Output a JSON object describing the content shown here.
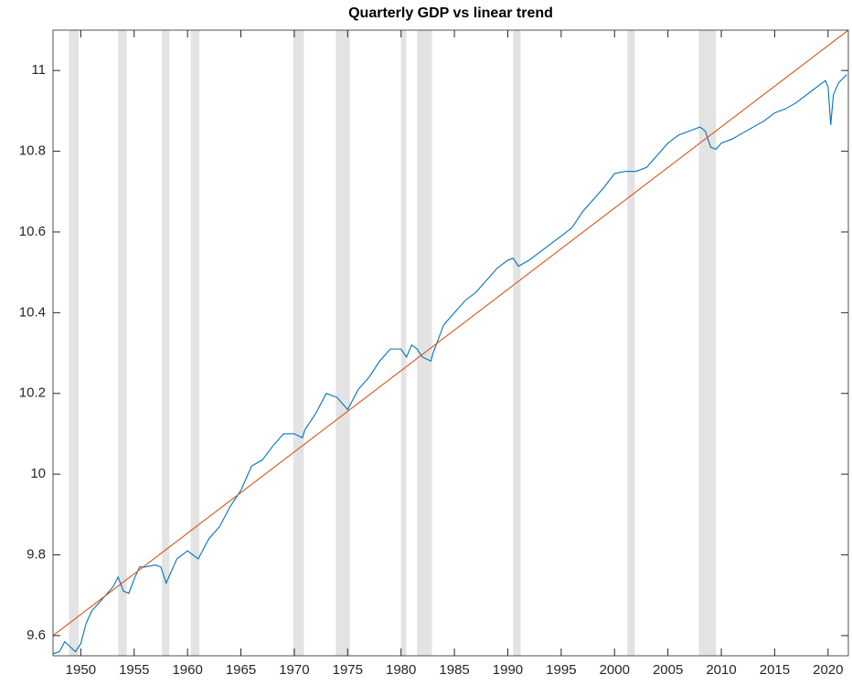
{
  "chart_data": {
    "type": "line",
    "title": "Quarterly GDP vs linear trend",
    "xlim": [
      1947.4,
      2021.9
    ],
    "xticks": [
      1950,
      1955,
      1960,
      1965,
      1970,
      1975,
      1980,
      1985,
      1990,
      1995,
      2000,
      2005,
      2010,
      2015,
      2020
    ],
    "ylim": [
      9.55,
      11.1
    ],
    "yticks": [
      9.6,
      9.8,
      10,
      10.2,
      10.4,
      10.6,
      10.8,
      11
    ],
    "recession_color": "#e3e3e3",
    "recessions": [
      [
        1948.9,
        1949.8
      ],
      [
        1953.5,
        1954.3
      ],
      [
        1957.6,
        1958.3
      ],
      [
        1960.3,
        1961.1
      ],
      [
        1969.9,
        1970.9
      ],
      [
        1973.9,
        1975.2
      ],
      [
        1980.0,
        1980.5
      ],
      [
        1981.5,
        1982.9
      ],
      [
        1990.5,
        1991.2
      ],
      [
        2001.2,
        2001.9
      ],
      [
        2007.9,
        2009.5
      ]
    ],
    "series": [
      {
        "color": "#0072bd",
        "x": [
          1947.4,
          1948,
          1948.5,
          1949.5,
          1950,
          1950.5,
          1951,
          1952,
          1953,
          1953.5,
          1954,
          1954.5,
          1955,
          1955.5,
          1956,
          1957,
          1957.5,
          1958,
          1959,
          1959.5,
          1960,
          1960.5,
          1961,
          1962,
          1963,
          1964,
          1965,
          1966,
          1967,
          1968,
          1969,
          1970,
          1970.75,
          1971,
          1972,
          1973,
          1974,
          1975,
          1976,
          1977,
          1978,
          1979,
          1980,
          1980.5,
          1981,
          1981.5,
          1982,
          1982.8,
          1983,
          1984,
          1985,
          1986,
          1987,
          1988,
          1989,
          1990,
          1990.5,
          1991,
          1992,
          1993,
          1994,
          1995,
          1996,
          1997,
          1998,
          1999,
          2000,
          2001,
          2002,
          2003,
          2004,
          2005,
          2006,
          2007,
          2008,
          2008.5,
          2009,
          2009.5,
          2010,
          2011,
          2012,
          2013,
          2014,
          2015,
          2016,
          2017,
          2018,
          2019,
          2019.75,
          2020,
          2020.25,
          2020.5,
          2021,
          2021.75
        ],
        "values": [
          9.555,
          9.56,
          9.585,
          9.56,
          9.58,
          9.63,
          9.66,
          9.69,
          9.72,
          9.745,
          9.71,
          9.705,
          9.74,
          9.77,
          9.77,
          9.775,
          9.77,
          9.73,
          9.79,
          9.8,
          9.81,
          9.8,
          9.79,
          9.84,
          9.87,
          9.92,
          9.96,
          10.02,
          10.035,
          10.07,
          10.1,
          10.1,
          10.09,
          10.11,
          10.15,
          10.2,
          10.19,
          10.16,
          10.21,
          10.24,
          10.28,
          10.31,
          10.31,
          10.29,
          10.32,
          10.31,
          10.29,
          10.28,
          10.3,
          10.37,
          10.4,
          10.43,
          10.45,
          10.48,
          10.51,
          10.53,
          10.535,
          10.515,
          10.53,
          10.55,
          10.57,
          10.59,
          10.61,
          10.65,
          10.68,
          10.71,
          10.745,
          10.75,
          10.75,
          10.76,
          10.79,
          10.82,
          10.84,
          10.85,
          10.86,
          10.85,
          10.81,
          10.805,
          10.82,
          10.83,
          10.845,
          10.86,
          10.875,
          10.895,
          10.905,
          10.92,
          10.94,
          10.96,
          10.975,
          10.96,
          10.865,
          10.94,
          10.97,
          10.99
        ]
      },
      {
        "color": "#d95319",
        "x": [
          1947.4,
          2021.9
        ],
        "values": [
          9.6,
          11.1
        ]
      }
    ]
  }
}
